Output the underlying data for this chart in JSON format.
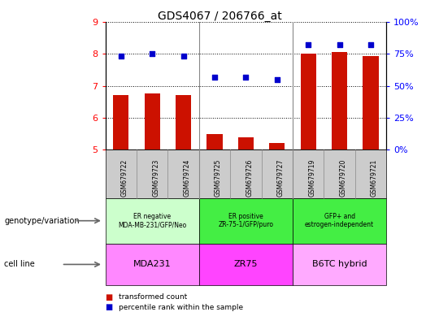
{
  "title": "GDS4067 / 206766_at",
  "samples": [
    "GSM679722",
    "GSM679723",
    "GSM679724",
    "GSM679725",
    "GSM679726",
    "GSM679727",
    "GSM679719",
    "GSM679720",
    "GSM679721"
  ],
  "bar_values": [
    6.7,
    6.75,
    6.7,
    5.48,
    5.38,
    5.22,
    8.0,
    8.05,
    7.92
  ],
  "dot_values": [
    7.93,
    8.0,
    7.92,
    7.28,
    7.28,
    7.2,
    8.28,
    8.28,
    8.28
  ],
  "bar_color": "#cc1100",
  "dot_color": "#0000cc",
  "ylim": [
    5,
    9
  ],
  "yticks": [
    5,
    6,
    7,
    8,
    9
  ],
  "y2lim": [
    0,
    100
  ],
  "y2ticks": [
    0,
    25,
    50,
    75,
    100
  ],
  "y2labels": [
    "0%",
    "25%",
    "50%",
    "75%",
    "100%"
  ],
  "genotype_labels": [
    "ER negative\nMDA-MB-231/GFP/Neo",
    "ER positive\nZR-75-1/GFP/puro",
    "GFP+ and\nestrogen-independent"
  ],
  "cell_labels": [
    "MDA231",
    "ZR75",
    "B6TC hybrid"
  ],
  "genotype_colors": [
    "#ccffcc",
    "#44ee44",
    "#44ee44"
  ],
  "cell_colors": [
    "#ff88ff",
    "#ff44ff",
    "#ffaaff"
  ],
  "legend_bar_label": "transformed count",
  "legend_dot_label": "percentile rank within the sample",
  "xlabel_genotype": "genotype/variation",
  "xlabel_cell": "cell line"
}
